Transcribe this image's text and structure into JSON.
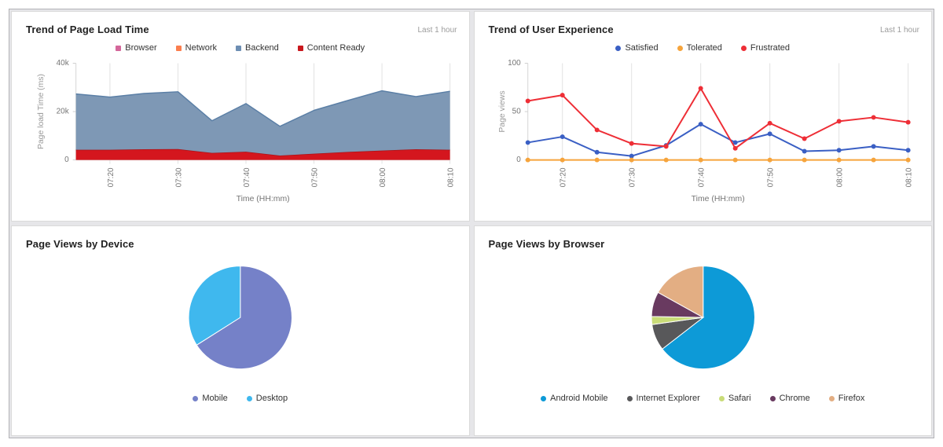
{
  "dashboard": {
    "panels": [
      {
        "title": "Trend of Page Load Time",
        "time_range": "Last 1 hour"
      },
      {
        "title": "Trend of User Experience",
        "time_range": "Last 1 hour"
      },
      {
        "title": "Page Views by Device"
      },
      {
        "title": "Page Views by Browser"
      }
    ]
  },
  "chart_data": [
    {
      "type": "area",
      "stacked": true,
      "title": "Trend of Page Load Time",
      "time_range": "Last 1 hour",
      "x": [
        "07:15",
        "07:20",
        "07:25",
        "07:30",
        "07:35",
        "07:40",
        "07:45",
        "07:50",
        "07:55",
        "08:00",
        "08:05",
        "08:10"
      ],
      "x_tick_labels": [
        "07:20",
        "07:30",
        "07:40",
        "07:50",
        "08:00",
        "08:10"
      ],
      "xlabel": "Time (HH:mm)",
      "ylabel": "Page load Time (ms)",
      "ylim": [
        0,
        40000
      ],
      "yticks": [
        {
          "v": 0,
          "label": "0"
        },
        {
          "v": 20000,
          "label": "20k"
        },
        {
          "v": 40000,
          "label": "40k"
        }
      ],
      "legend_position": "top",
      "grid": "vertical",
      "series": [
        {
          "name": "Browser",
          "color": "#D4679B",
          "values": [
            0,
            0,
            0,
            0,
            0,
            0,
            0,
            0,
            0,
            0,
            0,
            0
          ]
        },
        {
          "name": "Network",
          "color": "#FB7E4E",
          "values": [
            0,
            0,
            0,
            0,
            0,
            0,
            0,
            0,
            0,
            0,
            0,
            0
          ]
        },
        {
          "name": "Backend",
          "color": "#6D8EB3",
          "fill": "#7E98B5",
          "stroke": "#5B7FA6",
          "values": [
            23100,
            21800,
            23100,
            23700,
            13300,
            19900,
            12100,
            17900,
            21300,
            24700,
            21800,
            24200
          ]
        },
        {
          "name": "Content Ready",
          "color": "#C9181D",
          "fill": "#D4161E",
          "stroke": "#A81418",
          "values": [
            4200,
            4200,
            4400,
            4500,
            2900,
            3400,
            1800,
            2600,
            3300,
            3900,
            4400,
            4200
          ]
        }
      ]
    },
    {
      "type": "line",
      "title": "Trend of User Experience",
      "time_range": "Last 1 hour",
      "x": [
        "07:15",
        "07:20",
        "07:25",
        "07:30",
        "07:35",
        "07:40",
        "07:45",
        "07:50",
        "07:55",
        "08:00",
        "08:05",
        "08:10"
      ],
      "x_tick_labels": [
        "07:20",
        "07:30",
        "07:40",
        "07:50",
        "08:00",
        "08:10"
      ],
      "xlabel": "Time (HH:mm)",
      "ylabel": "Page views",
      "ylim": [
        0,
        100
      ],
      "yticks": [
        {
          "v": 0,
          "label": "0"
        },
        {
          "v": 50,
          "label": "50"
        },
        {
          "v": 100,
          "label": "100"
        }
      ],
      "legend_position": "top",
      "grid": "vertical",
      "series": [
        {
          "name": "Satisfied",
          "color": "#3A5FC4",
          "values": [
            18,
            24,
            8,
            4,
            15,
            37,
            18,
            27,
            9,
            10,
            14,
            10
          ]
        },
        {
          "name": "Tolerated",
          "color": "#F6A43C",
          "values": [
            0,
            0,
            0,
            0,
            0,
            0,
            0,
            0,
            0,
            0,
            0,
            0
          ]
        },
        {
          "name": "Frustrated",
          "color": "#EE2E36",
          "values": [
            61,
            67,
            31,
            17,
            14,
            74,
            12,
            38,
            22,
            40,
            44,
            39
          ]
        }
      ]
    },
    {
      "type": "pie",
      "title": "Page Views by Device",
      "labels": [
        "Mobile",
        "Desktop"
      ],
      "values": [
        66,
        34
      ],
      "colors": [
        "#7581C8",
        "#3FB8EE"
      ],
      "legend_position": "bottom"
    },
    {
      "type": "pie",
      "title": "Page Views by Browser",
      "labels": [
        "Android Mobile",
        "Internet Explorer",
        "Safari",
        "Chrome",
        "Firefox"
      ],
      "values": [
        64.5,
        8.3,
        2.5,
        7.8,
        16.9
      ],
      "colors": [
        "#0D9AD7",
        "#58585A",
        "#C9DC78",
        "#693A60",
        "#E3AE83"
      ],
      "legend_position": "bottom"
    }
  ]
}
